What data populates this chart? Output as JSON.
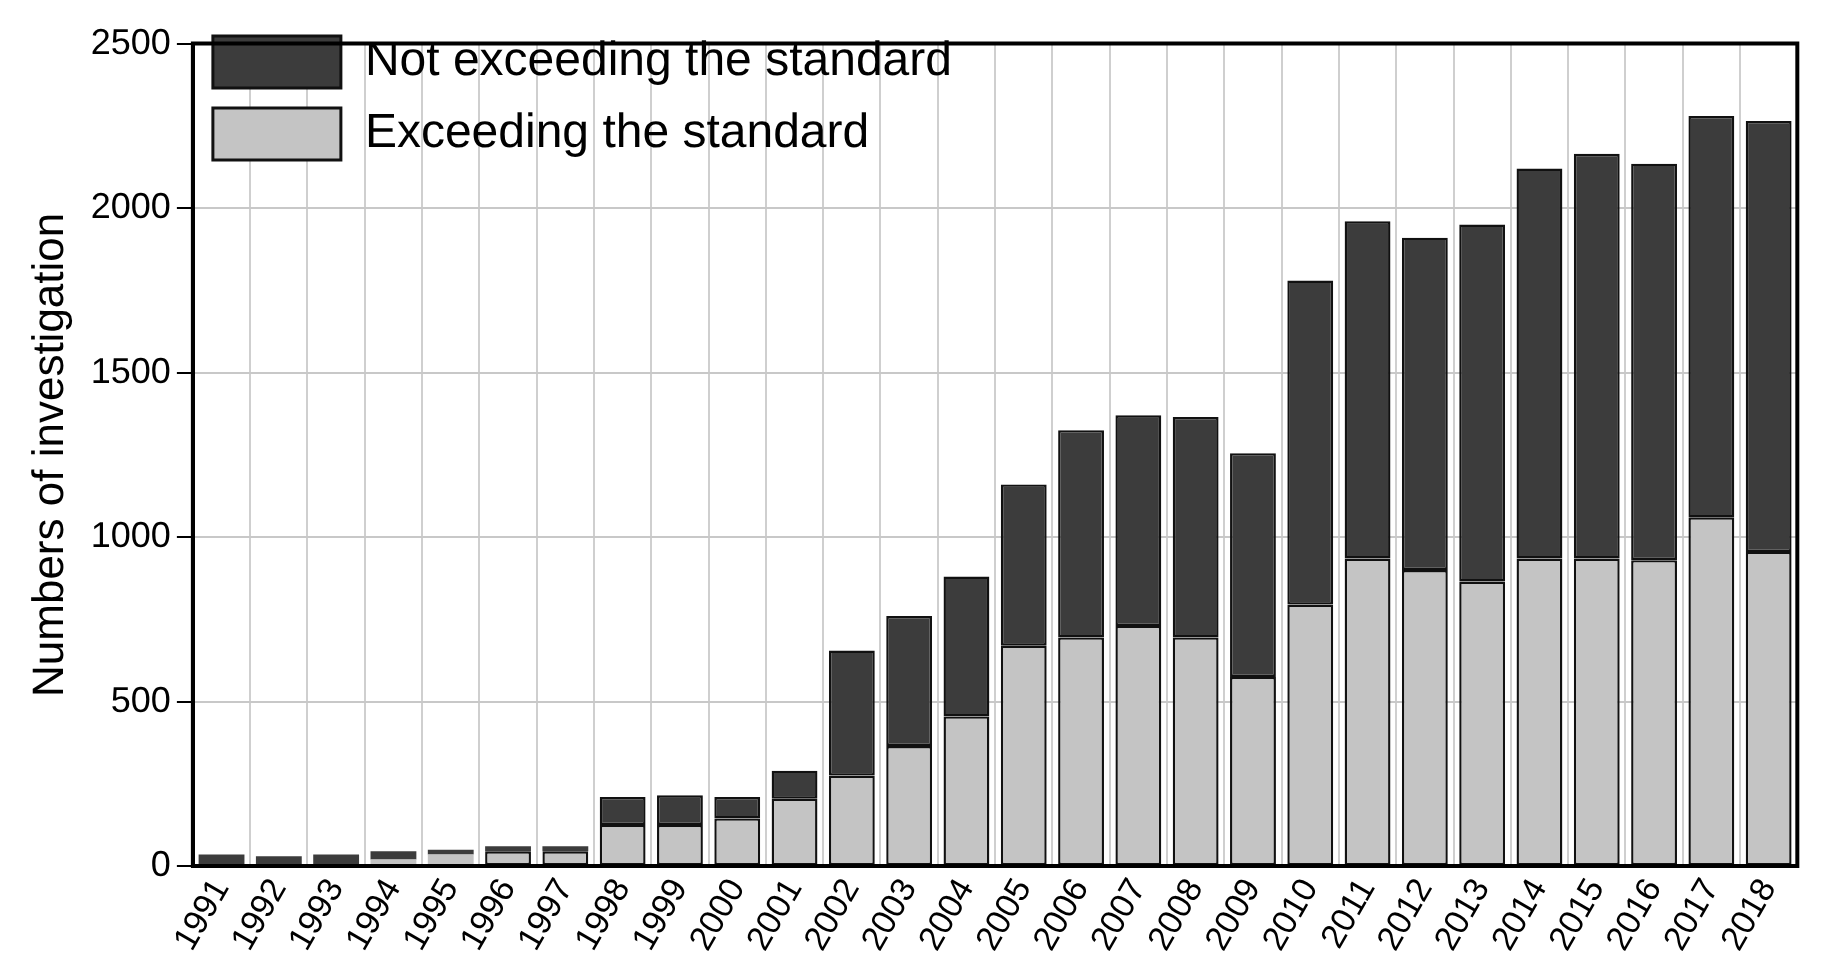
{
  "chart_data": {
    "type": "bar",
    "stacked": true,
    "ylabel": "Numbers of investigation",
    "categories": [
      "1991",
      "1992",
      "1993",
      "1994",
      "1995",
      "1996",
      "1997",
      "1998",
      "1999",
      "2000",
      "2001",
      "2002",
      "2003",
      "2004",
      "2005",
      "2006",
      "2007",
      "2008",
      "2009",
      "2010",
      "2011",
      "2012",
      "2013",
      "2014",
      "2015",
      "2016",
      "2017",
      "2018"
    ],
    "series": [
      {
        "name": "Exceeding the standard",
        "color": "#c4c4c4",
        "values": [
          null,
          null,
          null,
          20,
          35,
          45,
          45,
          125,
          125,
          145,
          205,
          275,
          365,
          455,
          670,
          695,
          730,
          695,
          575,
          795,
          935,
          900,
          865,
          935,
          935,
          930,
          1060,
          955
        ]
      },
      {
        "name": "Not exceeding the standard",
        "color": "#3c3c3c",
        "values": [
          35,
          30,
          35,
          25,
          15,
          15,
          15,
          85,
          90,
          65,
          85,
          380,
          395,
          425,
          490,
          630,
          640,
          670,
          680,
          985,
          1025,
          1010,
          1085,
          1185,
          1230,
          1205,
          1220,
          1310
        ]
      }
    ],
    "ylim": [
      0,
      2500
    ],
    "yticks": [
      0,
      500,
      1000,
      1500,
      2000,
      2500
    ],
    "grid": true,
    "legend": "top left"
  }
}
